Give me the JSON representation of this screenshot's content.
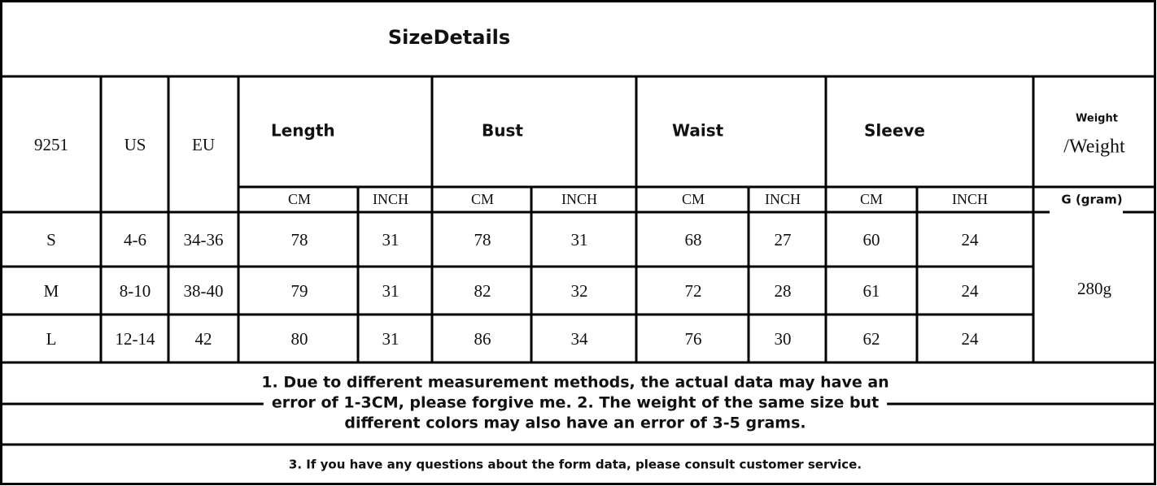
{
  "header": {
    "title": "SizeDetails"
  },
  "table": {
    "columns": {
      "code": "9251",
      "us": "US",
      "eu": "EU",
      "groups": [
        {
          "label": "Length",
          "units": [
            "CM",
            "INCH"
          ]
        },
        {
          "label": "Bust",
          "units": [
            "CM",
            "INCH"
          ]
        },
        {
          "label": "Waist",
          "units": [
            "CM",
            "INCH"
          ]
        },
        {
          "label": "Sleeve",
          "units": [
            "CM",
            "INCH"
          ]
        }
      ],
      "weight": {
        "label_top": "Weight",
        "label": "/Weight",
        "unit": "G (gram)"
      }
    },
    "rows": [
      [
        "S",
        "4-6",
        "34-36",
        "78",
        "31",
        "78",
        "31",
        "68",
        "27",
        "60",
        "24"
      ],
      [
        "M",
        "8-10",
        "38-40",
        "79",
        "31",
        "82",
        "32",
        "72",
        "28",
        "61",
        "24"
      ],
      [
        "L",
        "12-14",
        "42",
        "80",
        "31",
        "86",
        "34",
        "76",
        "30",
        "62",
        "24"
      ]
    ],
    "weight_value": "280g"
  },
  "notes": {
    "lines": [
      "1. Due to different measurement methods, the actual data may have an",
      "error of 1-3CM, please forgive me. 2. The weight of the same size but",
      "different colors may also have an error of 3-5 grams."
    ],
    "contact": "3. If you have any questions about the form data, please consult customer service."
  }
}
